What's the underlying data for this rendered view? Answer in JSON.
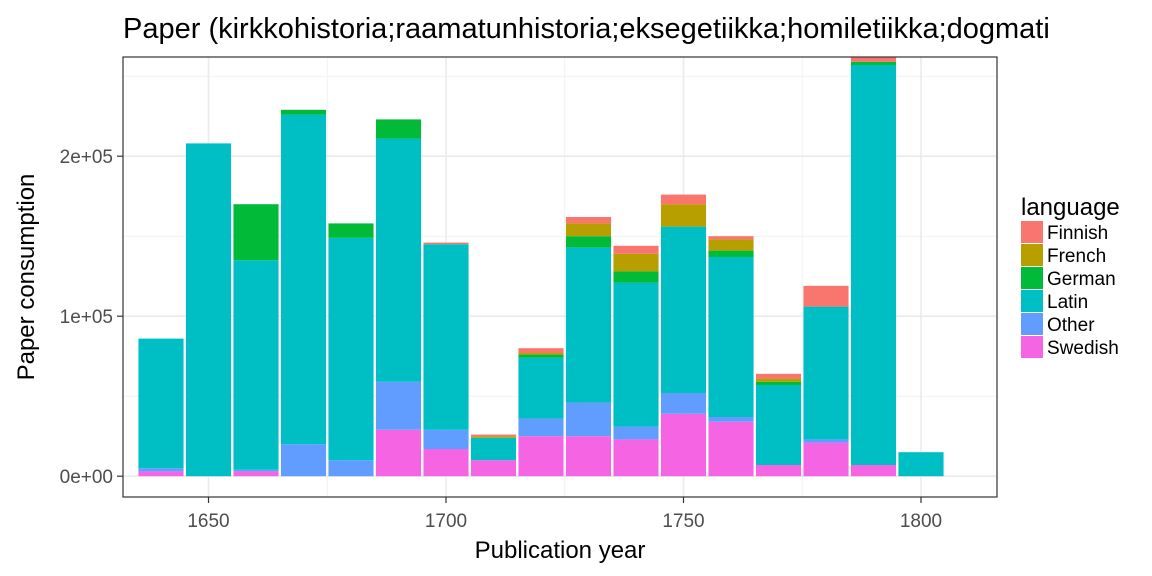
{
  "chart_data": {
    "type": "bar",
    "stacked": true,
    "title": "Paper (kirkkohistoria;raamatunhistoria;eksegetiikka;homiletiikka;dogmati",
    "xlabel": "Publication year",
    "ylabel": "Paper consumption",
    "xlim": [
      1632,
      1816
    ],
    "ylim": [
      -13000,
      262000
    ],
    "x_ticks": [
      1650,
      1700,
      1750,
      1800
    ],
    "x_tick_labels": [
      "1650",
      "1700",
      "1750",
      "1800"
    ],
    "y_ticks": [
      0,
      100000,
      200000
    ],
    "y_tick_labels": [
      "0e+00",
      "1e+05",
      "2e+05"
    ],
    "bar_width_years": 9.5,
    "grid": true,
    "legend": {
      "title": "language",
      "position": "right"
    },
    "x": [
      1640,
      1650,
      1660,
      1670,
      1680,
      1690,
      1700,
      1710,
      1720,
      1730,
      1740,
      1750,
      1760,
      1770,
      1780,
      1790,
      1800
    ],
    "series": [
      {
        "name": "Swedish",
        "color": "#F564E3",
        "values": [
          3000,
          0,
          3000,
          0,
          0,
          29000,
          17000,
          10000,
          25000,
          25000,
          23000,
          39000,
          34000,
          7000,
          21000,
          7000,
          0
        ]
      },
      {
        "name": "Other",
        "color": "#619CFF",
        "values": [
          2000,
          0,
          1000,
          20000,
          10000,
          30000,
          12000,
          0,
          11000,
          21000,
          8000,
          13000,
          3000,
          0,
          2000,
          0,
          0
        ]
      },
      {
        "name": "Latin",
        "color": "#00BFC4",
        "values": [
          81000,
          208000,
          131000,
          206000,
          139000,
          152000,
          116000,
          14000,
          38000,
          97000,
          90000,
          104000,
          100000,
          50000,
          83000,
          250000,
          15000
        ]
      },
      {
        "name": "German",
        "color": "#00BA38",
        "values": [
          0,
          0,
          35000,
          3000,
          9000,
          12000,
          0,
          0,
          2000,
          7000,
          7000,
          0,
          4000,
          2000,
          0,
          2000,
          0
        ]
      },
      {
        "name": "French",
        "color": "#B79F00",
        "values": [
          0,
          0,
          0,
          0,
          0,
          0,
          0,
          1000,
          1000,
          8000,
          11000,
          14000,
          7000,
          2000,
          0,
          0,
          0
        ]
      },
      {
        "name": "Finnish",
        "color": "#F8766D",
        "values": [
          0,
          0,
          0,
          0,
          0,
          0,
          1000,
          1000,
          3000,
          4000,
          5000,
          6000,
          2000,
          3000,
          13000,
          3000,
          0
        ]
      }
    ]
  }
}
